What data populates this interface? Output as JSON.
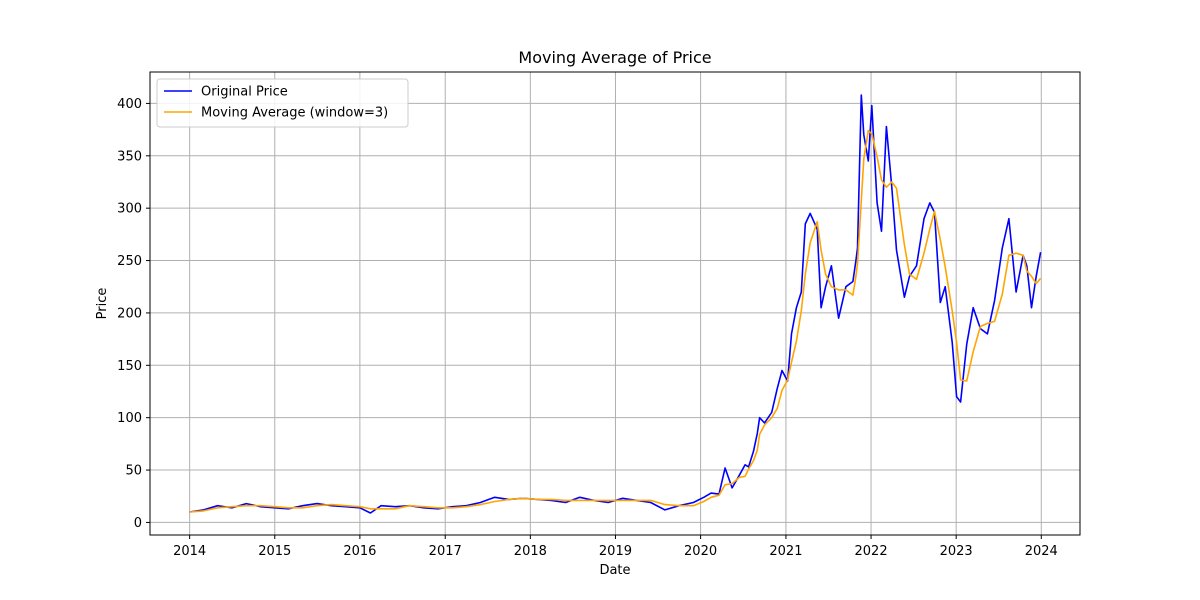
{
  "chart_data": {
    "type": "line",
    "title": "Moving Average of Price",
    "xlabel": "Date",
    "ylabel": "Price",
    "x_ticks": [
      "2014",
      "2015",
      "2016",
      "2017",
      "2018",
      "2019",
      "2020",
      "2021",
      "2022",
      "2023",
      "2024"
    ],
    "y_ticks": [
      "0",
      "50",
      "100",
      "150",
      "200",
      "250",
      "300",
      "350",
      "400"
    ],
    "xlim": [
      "2013-07-15",
      "2024-06-15"
    ],
    "ylim": [
      -12,
      430
    ],
    "grid": true,
    "legend_position": "upper-left",
    "colors": {
      "original": "#0000ff",
      "moving_average": "#ffa500"
    },
    "series": [
      {
        "name": "Original Price",
        "x": [
          "2014-01-01",
          "2014-03-01",
          "2014-05-01",
          "2014-07-01",
          "2014-09-01",
          "2014-11-01",
          "2015-01-01",
          "2015-03-01",
          "2015-05-01",
          "2015-07-01",
          "2015-09-01",
          "2015-11-01",
          "2016-01-01",
          "2016-02-15",
          "2016-04-01",
          "2016-06-01",
          "2016-08-01",
          "2016-10-01",
          "2016-12-01",
          "2017-02-01",
          "2017-04-01",
          "2017-06-01",
          "2017-08-01",
          "2017-10-01",
          "2017-12-01",
          "2018-02-01",
          "2018-04-01",
          "2018-06-01",
          "2018-08-01",
          "2018-10-01",
          "2018-12-01",
          "2019-02-01",
          "2019-04-01",
          "2019-06-01",
          "2019-08-01",
          "2019-10-01",
          "2019-12-01",
          "2020-01-15",
          "2020-02-15",
          "2020-03-20",
          "2020-04-15",
          "2020-05-15",
          "2020-06-15",
          "2020-07-10",
          "2020-07-25",
          "2020-08-15",
          "2020-08-31",
          "2020-09-10",
          "2020-10-01",
          "2020-11-01",
          "2020-11-25",
          "2020-12-15",
          "2021-01-08",
          "2021-01-25",
          "2021-02-15",
          "2021-03-08",
          "2021-03-25",
          "2021-04-15",
          "2021-05-15",
          "2021-06-01",
          "2021-06-20",
          "2021-07-15",
          "2021-08-15",
          "2021-09-15",
          "2021-10-15",
          "2021-10-28",
          "2021-11-04",
          "2021-11-20",
          "2021-12-01",
          "2021-12-20",
          "2022-01-04",
          "2022-01-27",
          "2022-02-15",
          "2022-03-08",
          "2022-03-31",
          "2022-04-20",
          "2022-05-24",
          "2022-06-15",
          "2022-07-15",
          "2022-08-16",
          "2022-09-10",
          "2022-09-30",
          "2022-10-25",
          "2022-11-15",
          "2022-12-15",
          "2023-01-03",
          "2023-01-20",
          "2023-02-15",
          "2023-03-15",
          "2023-04-15",
          "2023-05-15",
          "2023-06-15",
          "2023-07-18",
          "2023-08-15",
          "2023-09-15",
          "2023-10-15",
          "2023-10-31",
          "2023-11-20",
          "2023-12-10",
          "2023-12-29"
        ],
        "values": [
          10,
          12,
          16,
          14,
          18,
          15,
          14,
          13,
          16,
          18,
          16,
          15,
          14,
          9,
          16,
          15,
          16,
          14,
          13,
          15,
          16,
          19,
          24,
          22,
          23,
          22,
          21,
          19,
          24,
          21,
          19,
          23,
          21,
          19,
          12,
          16,
          19,
          24,
          28,
          27,
          52,
          33,
          45,
          55,
          53,
          68,
          85,
          100,
          95,
          105,
          128,
          145,
          135,
          180,
          205,
          220,
          285,
          295,
          280,
          205,
          225,
          245,
          195,
          225,
          230,
          250,
          262,
          408,
          370,
          345,
          398,
          305,
          278,
          378,
          320,
          260,
          215,
          235,
          245,
          290,
          305,
          296,
          210,
          225,
          172,
          120,
          115,
          170,
          205,
          185,
          180,
          212,
          262,
          290,
          220,
          255,
          245,
          205,
          235,
          258
        ]
      },
      {
        "name": "Moving Average (window=3)",
        "x": [
          "2014-01-01",
          "2014-03-01",
          "2014-05-01",
          "2014-07-01",
          "2014-09-01",
          "2014-11-01",
          "2015-01-01",
          "2015-03-01",
          "2015-05-01",
          "2015-07-01",
          "2015-09-01",
          "2015-11-01",
          "2016-01-01",
          "2016-02-15",
          "2016-04-01",
          "2016-06-01",
          "2016-08-01",
          "2016-10-01",
          "2016-12-01",
          "2017-02-01",
          "2017-04-01",
          "2017-06-01",
          "2017-08-01",
          "2017-10-01",
          "2017-12-01",
          "2018-02-01",
          "2018-04-01",
          "2018-06-01",
          "2018-08-01",
          "2018-10-01",
          "2018-12-01",
          "2019-02-01",
          "2019-04-01",
          "2019-06-01",
          "2019-08-01",
          "2019-10-01",
          "2019-12-01",
          "2020-01-15",
          "2020-02-15",
          "2020-03-20",
          "2020-04-15",
          "2020-05-15",
          "2020-06-15",
          "2020-07-10",
          "2020-07-25",
          "2020-08-15",
          "2020-08-31",
          "2020-09-10",
          "2020-10-01",
          "2020-11-01",
          "2020-11-25",
          "2020-12-15",
          "2021-01-08",
          "2021-01-25",
          "2021-02-15",
          "2021-03-08",
          "2021-03-25",
          "2021-04-15",
          "2021-05-15",
          "2021-06-01",
          "2021-06-20",
          "2021-07-15",
          "2021-08-15",
          "2021-09-15",
          "2021-10-15",
          "2021-10-28",
          "2021-11-04",
          "2021-11-20",
          "2021-12-01",
          "2021-12-20",
          "2022-01-04",
          "2022-01-27",
          "2022-02-15",
          "2022-03-08",
          "2022-03-31",
          "2022-04-20",
          "2022-05-24",
          "2022-06-15",
          "2022-07-15",
          "2022-08-16",
          "2022-09-10",
          "2022-09-30",
          "2022-10-25",
          "2022-11-15",
          "2022-12-15",
          "2023-01-03",
          "2023-01-20",
          "2023-02-15",
          "2023-03-15",
          "2023-04-15",
          "2023-05-15",
          "2023-06-15",
          "2023-07-18",
          "2023-08-15",
          "2023-09-15",
          "2023-10-15",
          "2023-10-31",
          "2023-11-20",
          "2023-12-10",
          "2023-12-29"
        ],
        "values": [
          10,
          11,
          14,
          15,
          16,
          16,
          15,
          14,
          14,
          16,
          17,
          16,
          15,
          13,
          13,
          13,
          16,
          15,
          14,
          14,
          15,
          17,
          20,
          22,
          23,
          22,
          22,
          21,
          21,
          21,
          21,
          21,
          21,
          21,
          17,
          16,
          16,
          20,
          24,
          26,
          36,
          37,
          43,
          44,
          51,
          59,
          69,
          84,
          93,
          100,
          109,
          126,
          136,
          153,
          173,
          202,
          237,
          267,
          287,
          260,
          237,
          225,
          222,
          222,
          217,
          235,
          247,
          307,
          347,
          374,
          371,
          349,
          327,
          320,
          325,
          319,
          265,
          237,
          232,
          257,
          280,
          297,
          270,
          244,
          202,
          172,
          136,
          135,
          163,
          187,
          190,
          192,
          218,
          255,
          257,
          255,
          240,
          235,
          228,
          233
        ]
      }
    ]
  }
}
